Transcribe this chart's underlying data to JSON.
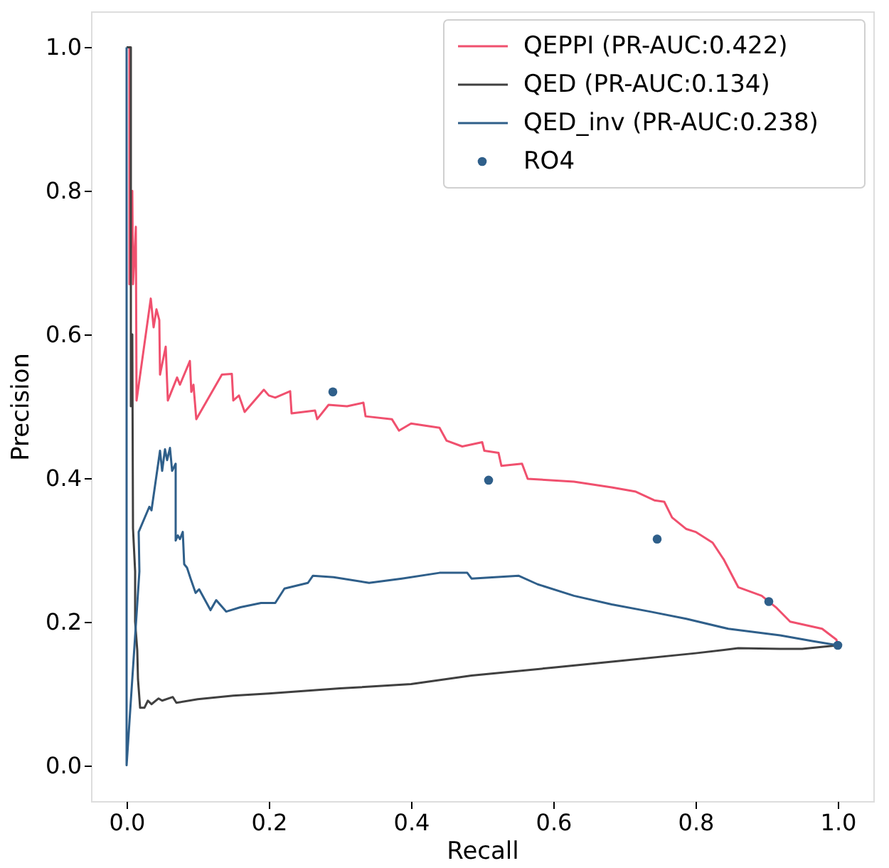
{
  "chart_data": {
    "type": "line",
    "xlabel": "Recall",
    "ylabel": "Precision",
    "xlim": [
      -0.05,
      1.05
    ],
    "ylim": [
      -0.05,
      1.05
    ],
    "xticks": [
      {
        "value": 0,
        "label": "0.0"
      },
      0.2,
      0.4,
      0.6,
      0.8,
      {
        "value": 1,
        "label": "1.0"
      }
    ],
    "yticks": [
      {
        "value": 0,
        "label": "0.0"
      },
      0.2,
      0.4,
      0.6,
      0.8,
      {
        "value": 1,
        "label": "1.0"
      }
    ],
    "grid": false,
    "legend": "top right",
    "line_style": "solid",
    "series": [
      {
        "name": "QEPPI (PR-AUC:0.422)",
        "color": "#f0506e",
        "x": [
          0.0,
          0.004,
          0.004,
          0.008,
          0.009,
          0.013,
          0.014,
          0.034,
          0.038,
          0.042,
          0.046,
          0.047,
          0.055,
          0.058,
          0.071,
          0.075,
          0.089,
          0.091,
          0.094,
          0.098,
          0.134,
          0.148,
          0.15,
          0.158,
          0.166,
          0.193,
          0.2,
          0.209,
          0.23,
          0.232,
          0.265,
          0.268,
          0.284,
          0.31,
          0.333,
          0.336,
          0.373,
          0.383,
          0.4,
          0.44,
          0.45,
          0.472,
          0.5,
          0.503,
          0.523,
          0.527,
          0.556,
          0.564,
          0.629,
          0.682,
          0.716,
          0.742,
          0.756,
          0.767,
          0.787,
          0.8,
          0.824,
          0.84,
          0.86,
          0.893,
          0.913,
          0.933,
          0.978,
          0.998,
          1.0
        ],
        "values": [
          1.0,
          1.0,
          0.67,
          0.8,
          0.67,
          0.75,
          0.508,
          0.65,
          0.61,
          0.635,
          0.62,
          0.544,
          0.583,
          0.508,
          0.54,
          0.53,
          0.563,
          0.52,
          0.53,
          0.482,
          0.544,
          0.545,
          0.508,
          0.515,
          0.492,
          0.523,
          0.515,
          0.512,
          0.521,
          0.49,
          0.494,
          0.482,
          0.502,
          0.5,
          0.505,
          0.486,
          0.482,
          0.466,
          0.476,
          0.47,
          0.452,
          0.444,
          0.45,
          0.438,
          0.435,
          0.417,
          0.42,
          0.399,
          0.395,
          0.387,
          0.381,
          0.369,
          0.367,
          0.345,
          0.329,
          0.325,
          0.31,
          0.286,
          0.248,
          0.236,
          0.22,
          0.2,
          0.19,
          0.175,
          0.167
        ]
      },
      {
        "name": "QED (PR-AUC:0.134)",
        "color": "#404040",
        "x": [
          0.0,
          0.006,
          0.006,
          0.008,
          0.009,
          0.012,
          0.012,
          0.015,
          0.016,
          0.019,
          0.025,
          0.03,
          0.035,
          0.045,
          0.05,
          0.065,
          0.07,
          0.1,
          0.15,
          0.2,
          0.3,
          0.4,
          0.485,
          0.6,
          0.7,
          0.8,
          0.86,
          0.919,
          0.95,
          1.0
        ],
        "values": [
          1.0,
          1.0,
          0.5,
          0.6,
          0.33,
          0.27,
          0.2,
          0.16,
          0.12,
          0.08,
          0.08,
          0.09,
          0.085,
          0.093,
          0.09,
          0.095,
          0.087,
          0.092,
          0.097,
          0.1,
          0.107,
          0.113,
          0.125,
          0.136,
          0.146,
          0.156,
          0.163,
          0.162,
          0.162,
          0.167
        ]
      },
      {
        "name": "QED_inv (PR-AUC:0.238)",
        "color": "#2f5f8a",
        "x": [
          0.0,
          0.0,
          0.018,
          0.017,
          0.032,
          0.035,
          0.047,
          0.05,
          0.054,
          0.057,
          0.061,
          0.064,
          0.069,
          0.069,
          0.072,
          0.075,
          0.079,
          0.081,
          0.085,
          0.09,
          0.097,
          0.102,
          0.118,
          0.126,
          0.14,
          0.16,
          0.189,
          0.209,
          0.222,
          0.255,
          0.262,
          0.291,
          0.341,
          0.387,
          0.44,
          0.479,
          0.485,
          0.551,
          0.578,
          0.629,
          0.682,
          0.736,
          0.787,
          0.846,
          0.919,
          0.964,
          1.0
        ],
        "values": [
          1.0,
          0.0,
          0.27,
          0.325,
          0.36,
          0.355,
          0.438,
          0.41,
          0.44,
          0.425,
          0.442,
          0.41,
          0.42,
          0.313,
          0.32,
          0.315,
          0.325,
          0.28,
          0.275,
          0.26,
          0.24,
          0.245,
          0.216,
          0.23,
          0.214,
          0.22,
          0.226,
          0.226,
          0.246,
          0.254,
          0.264,
          0.262,
          0.254,
          0.26,
          0.268,
          0.268,
          0.26,
          0.264,
          0.252,
          0.236,
          0.224,
          0.214,
          0.204,
          0.19,
          0.181,
          0.173,
          0.167
        ]
      },
      {
        "name": "RO4",
        "type": "scatter",
        "color": "#2f5f8a",
        "marker": "circle",
        "x": [
          0.29,
          0.509,
          0.746,
          0.903,
          1.0
        ],
        "values": [
          0.52,
          0.397,
          0.315,
          0.228,
          0.167
        ]
      }
    ]
  }
}
